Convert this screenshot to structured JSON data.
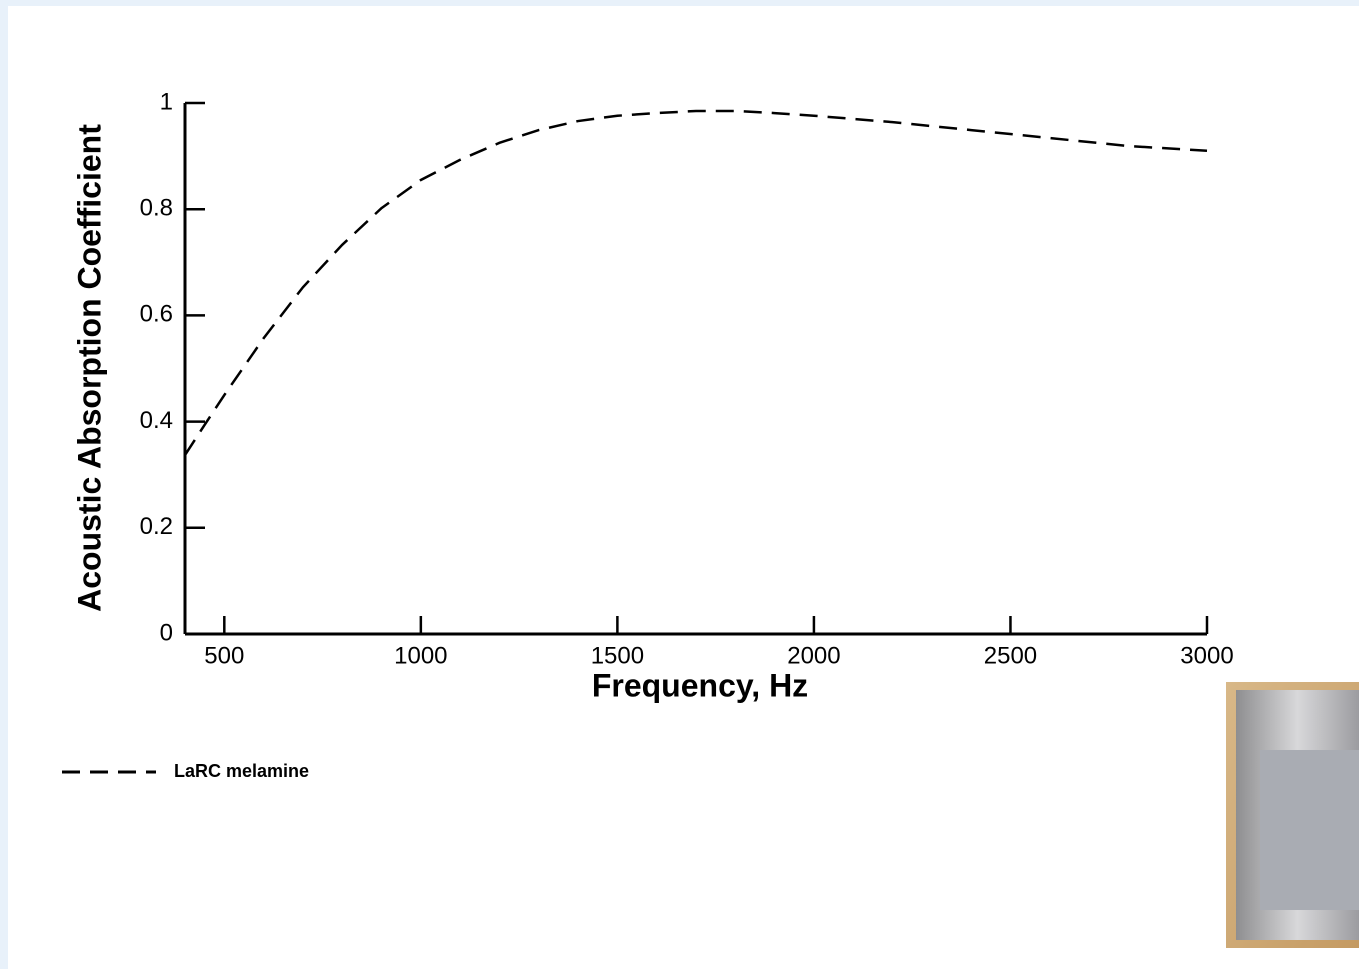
{
  "chart_data": {
    "type": "line",
    "x_label": "Frequency, Hz",
    "y_label": "Acoustic Absorption Coefficient",
    "x": [
      400,
      450,
      500,
      600,
      700,
      800,
      900,
      1000,
      1100,
      1200,
      1300,
      1400,
      1500,
      1600,
      1700,
      1800,
      1900,
      2000,
      2200,
      2400,
      2600,
      2800,
      3000
    ],
    "series": [
      {
        "name": "LaRC melamine",
        "color": "#000000",
        "dash": true,
        "values": [
          0.337,
          0.394,
          0.45,
          0.557,
          0.653,
          0.733,
          0.802,
          0.855,
          0.893,
          0.925,
          0.949,
          0.966,
          0.976,
          0.981,
          0.985,
          0.985,
          0.981,
          0.976,
          0.964,
          0.949,
          0.934,
          0.919,
          0.91
        ]
      }
    ],
    "xlim": [
      400,
      3000
    ],
    "xticks": [
      500,
      1000,
      1500,
      2000,
      2500,
      3000
    ],
    "ylim": [
      0,
      1
    ],
    "yticks": [
      0,
      0.2,
      0.4,
      0.6,
      0.8,
      1
    ],
    "legend": "bottom-left"
  }
}
